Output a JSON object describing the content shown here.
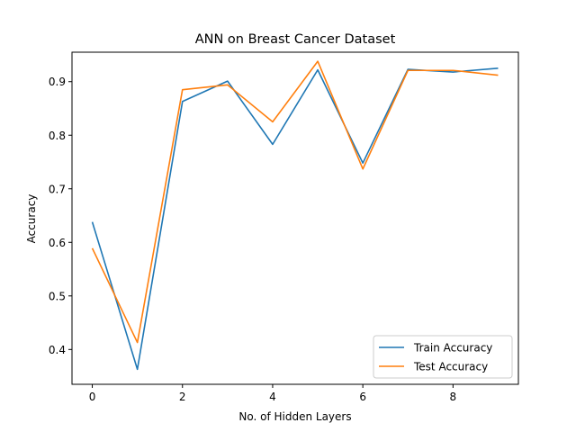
{
  "chart_data": {
    "type": "line",
    "title": "ANN on Breast Cancer Dataset",
    "xlabel": "No. of Hidden Layers",
    "ylabel": "Accuracy",
    "xlim": [
      -0.45,
      9.45
    ],
    "ylim": [
      0.335,
      0.955
    ],
    "xticks": [
      0,
      2,
      4,
      6,
      8
    ],
    "yticks": [
      0.4,
      0.5,
      0.6,
      0.7,
      0.8,
      0.9
    ],
    "xtick_labels": [
      "0",
      "2",
      "4",
      "6",
      "8"
    ],
    "ytick_labels": [
      "0.4",
      "0.5",
      "0.6",
      "0.7",
      "0.8",
      "0.9"
    ],
    "grid": false,
    "legend_position": "lower-right",
    "x": [
      0,
      1,
      2,
      3,
      4,
      5,
      6,
      7,
      8,
      9
    ],
    "series": [
      {
        "name": "Train Accuracy",
        "color": "#1f77b4",
        "values": [
          0.638,
          0.363,
          0.863,
          0.901,
          0.783,
          0.922,
          0.748,
          0.923,
          0.918,
          0.925
        ]
      },
      {
        "name": "Test Accuracy",
        "color": "#ff7f0e",
        "values": [
          0.589,
          0.413,
          0.885,
          0.894,
          0.825,
          0.938,
          0.737,
          0.921,
          0.921,
          0.912
        ]
      }
    ]
  }
}
